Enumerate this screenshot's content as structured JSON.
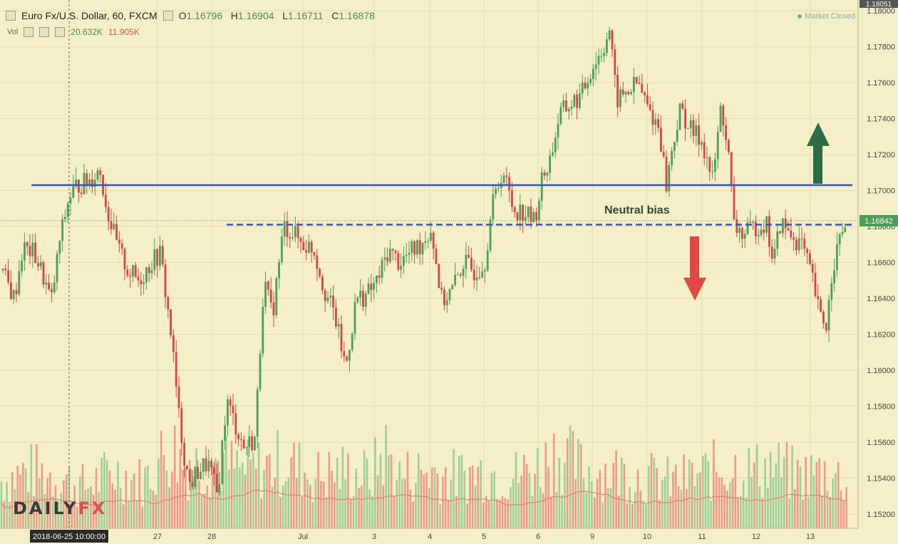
{
  "header": {
    "symbol": "Euro Fx/U.S. Dollar, 60, FXCM",
    "open_label": "O",
    "open": "1.16796",
    "high_label": "H",
    "high": "1.16904",
    "low_label": "L",
    "low": "1.16711",
    "close_label": "C",
    "close": "1.16878",
    "status": "Market Closed"
  },
  "volume": {
    "label": "Vol",
    "v1": "20.632K",
    "v2": "11.905K"
  },
  "logo": {
    "part1": "DAILY",
    "part2": "FX"
  },
  "colors": {
    "background": "#f4efc6",
    "up": "#4a9e55",
    "down": "#d64545",
    "level": "#2f56c8",
    "arrow_up": "#2d6b45",
    "arrow_down": "#e04848",
    "vol_up": "#9fcf95",
    "vol_down": "#ee9a86"
  },
  "chart_data": {
    "type": "candlestick",
    "y_ticks": [
      "1.18000",
      "1.17800",
      "1.17600",
      "1.17400",
      "1.17200",
      "1.17000",
      "1.16800",
      "1.16600",
      "1.16400",
      "1.16200",
      "1.16000",
      "1.15800",
      "1.15600",
      "1.15400",
      "1.15200"
    ],
    "ylim": [
      1.1512,
      1.1806
    ],
    "top_price_tag": "1.18051",
    "last_price_tag": "1.16842",
    "x_tick_labels": [
      "2018-06-25 10:00:00",
      "27",
      "28",
      "Jul",
      "3",
      "4",
      "5",
      "6",
      "9",
      "10",
      "11",
      "12",
      "13"
    ],
    "crosshair_label": "2018-06-25 10:00:00",
    "levels": [
      {
        "price": 1.1703,
        "style": "solid"
      },
      {
        "price": 1.1681,
        "style": "dashed"
      }
    ],
    "annotation": "Neutral bias",
    "path_anchors": [
      [
        0,
        1.1661
      ],
      [
        8,
        1.165
      ],
      [
        20,
        1.164
      ],
      [
        32,
        1.1668
      ],
      [
        48,
        1.1665
      ],
      [
        60,
        1.1653
      ],
      [
        72,
        1.1638
      ],
      [
        84,
        1.1672
      ],
      [
        96,
        1.1695
      ],
      [
        108,
        1.1703
      ],
      [
        124,
        1.1705
      ],
      [
        140,
        1.1712
      ],
      [
        150,
        1.169
      ],
      [
        165,
        1.1668
      ],
      [
        180,
        1.1655
      ],
      [
        195,
        1.165
      ],
      [
        212,
        1.166
      ],
      [
        225,
        1.1665
      ],
      [
        240,
        1.162
      ],
      [
        252,
        1.157
      ],
      [
        265,
        1.1536
      ],
      [
        280,
        1.1545
      ],
      [
        292,
        1.1548
      ],
      [
        305,
        1.153
      ],
      [
        318,
        1.1583
      ],
      [
        330,
        1.157
      ],
      [
        342,
        1.1557
      ],
      [
        358,
        1.1562
      ],
      [
        370,
        1.165
      ],
      [
        382,
        1.163
      ],
      [
        398,
        1.168
      ],
      [
        410,
        1.1677
      ],
      [
        425,
        1.167
      ],
      [
        440,
        1.1668
      ],
      [
        455,
        1.1645
      ],
      [
        470,
        1.163
      ],
      [
        485,
        1.1601
      ],
      [
        500,
        1.164
      ],
      [
        515,
        1.1642
      ],
      [
        530,
        1.165
      ],
      [
        545,
        1.1667
      ],
      [
        560,
        1.166
      ],
      [
        575,
        1.1665
      ],
      [
        590,
        1.167
      ],
      [
        605,
        1.1679
      ],
      [
        620,
        1.1638
      ],
      [
        635,
        1.1645
      ],
      [
        650,
        1.166
      ],
      [
        665,
        1.1655
      ],
      [
        680,
        1.166
      ],
      [
        690,
        1.169
      ],
      [
        705,
        1.1712
      ],
      [
        720,
        1.169
      ],
      [
        735,
        1.1688
      ],
      [
        750,
        1.1683
      ],
      [
        760,
        1.1705
      ],
      [
        772,
        1.1718
      ],
      [
        785,
        1.1742
      ],
      [
        800,
        1.1748
      ],
      [
        815,
        1.1752
      ],
      [
        830,
        1.1768
      ],
      [
        845,
        1.1778
      ],
      [
        855,
        1.179
      ],
      [
        865,
        1.175
      ],
      [
        880,
        1.1755
      ],
      [
        895,
        1.176
      ],
      [
        910,
        1.1745
      ],
      [
        925,
        1.1735
      ],
      [
        935,
        1.1703
      ],
      [
        945,
        1.1728
      ],
      [
        955,
        1.1745
      ],
      [
        970,
        1.1733
      ],
      [
        985,
        1.1728
      ],
      [
        1000,
        1.1705
      ],
      [
        1012,
        1.1748
      ],
      [
        1022,
        1.172
      ],
      [
        1030,
        1.168
      ],
      [
        1045,
        1.1675
      ],
      [
        1060,
        1.168
      ],
      [
        1075,
        1.1682
      ],
      [
        1085,
        1.166
      ],
      [
        1095,
        1.1682
      ],
      [
        1110,
        1.1675
      ],
      [
        1125,
        1.167
      ],
      [
        1140,
        1.165
      ],
      [
        1150,
        1.163
      ],
      [
        1160,
        1.1625
      ],
      [
        1168,
        1.1658
      ],
      [
        1178,
        1.1672
      ],
      [
        1188,
        1.1684
      ]
    ],
    "volume_anchors": [
      [
        0,
        0.45
      ],
      [
        40,
        0.55
      ],
      [
        80,
        0.5
      ],
      [
        120,
        0.4
      ],
      [
        160,
        0.55
      ],
      [
        200,
        0.45
      ],
      [
        240,
        0.8
      ],
      [
        260,
        0.6
      ],
      [
        300,
        0.65
      ],
      [
        340,
        0.55
      ],
      [
        380,
        0.6
      ],
      [
        400,
        0.65
      ],
      [
        440,
        0.5
      ],
      [
        480,
        0.55
      ],
      [
        520,
        0.5
      ],
      [
        540,
        0.75
      ],
      [
        560,
        0.5
      ],
      [
        600,
        0.55
      ],
      [
        640,
        0.5
      ],
      [
        680,
        0.55
      ],
      [
        720,
        0.5
      ],
      [
        760,
        0.6
      ],
      [
        780,
        0.75
      ],
      [
        820,
        0.55
      ],
      [
        860,
        0.55
      ],
      [
        900,
        0.5
      ],
      [
        940,
        0.45
      ],
      [
        980,
        0.5
      ],
      [
        1000,
        0.55
      ],
      [
        1020,
        0.6
      ],
      [
        1060,
        0.55
      ],
      [
        1080,
        0.6
      ],
      [
        1120,
        0.5
      ],
      [
        1160,
        0.55
      ],
      [
        1188,
        0.45
      ]
    ]
  }
}
